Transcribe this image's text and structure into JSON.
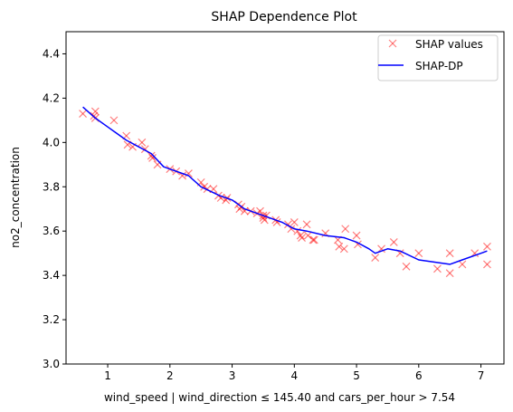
{
  "chart_data": {
    "type": "scatter",
    "title": "SHAP Dependence Plot",
    "xlabel": "wind_speed | wind_direction ≤ 145.40 and cars_per_hour > 7.54",
    "ylabel": "no2_concentration",
    "xlim": [
      0.33,
      7.37
    ],
    "ylim": [
      3.0,
      4.5
    ],
    "xticks": [
      1,
      2,
      3,
      4,
      5,
      6,
      7
    ],
    "yticks": [
      3.0,
      3.2,
      3.4,
      3.6,
      3.8,
      4.0,
      4.2,
      4.4
    ],
    "xtick_labels": [
      "1",
      "2",
      "3",
      "4",
      "5",
      "6",
      "7"
    ],
    "ytick_labels": [
      "3.0",
      "3.2",
      "3.4",
      "3.6",
      "3.8",
      "4.0",
      "4.2",
      "4.4"
    ],
    "legend_position": "top-right",
    "grid": false,
    "series": [
      {
        "name": "SHAP values",
        "kind": "scatter",
        "marker": "x",
        "color": "#ff0000",
        "alpha": 0.5,
        "points": [
          [
            0.6,
            4.13
          ],
          [
            0.78,
            4.12
          ],
          [
            0.8,
            4.14
          ],
          [
            0.8,
            4.11
          ],
          [
            1.1,
            4.1
          ],
          [
            1.3,
            4.03
          ],
          [
            1.32,
            3.99
          ],
          [
            1.4,
            3.98
          ],
          [
            1.55,
            4.0
          ],
          [
            1.6,
            3.97
          ],
          [
            1.7,
            3.94
          ],
          [
            1.72,
            3.93
          ],
          [
            1.8,
            3.9
          ],
          [
            2.0,
            3.88
          ],
          [
            2.1,
            3.87
          ],
          [
            2.2,
            3.85
          ],
          [
            2.3,
            3.86
          ],
          [
            2.5,
            3.82
          ],
          [
            2.55,
            3.8
          ],
          [
            2.6,
            3.79
          ],
          [
            2.7,
            3.79
          ],
          [
            2.78,
            3.76
          ],
          [
            2.82,
            3.75
          ],
          [
            2.9,
            3.74
          ],
          [
            2.92,
            3.75
          ],
          [
            3.1,
            3.72
          ],
          [
            3.12,
            3.7
          ],
          [
            3.15,
            3.71
          ],
          [
            3.2,
            3.69
          ],
          [
            3.3,
            3.69
          ],
          [
            3.4,
            3.68
          ],
          [
            3.45,
            3.69
          ],
          [
            3.5,
            3.67
          ],
          [
            3.5,
            3.66
          ],
          [
            3.52,
            3.65
          ],
          [
            3.55,
            3.67
          ],
          [
            3.7,
            3.65
          ],
          [
            3.72,
            3.64
          ],
          [
            3.9,
            3.63
          ],
          [
            3.95,
            3.61
          ],
          [
            4.0,
            3.64
          ],
          [
            4.05,
            3.6
          ],
          [
            4.1,
            3.58
          ],
          [
            4.12,
            3.57
          ],
          [
            4.2,
            3.63
          ],
          [
            4.22,
            3.58
          ],
          [
            4.3,
            3.56
          ],
          [
            4.32,
            3.56
          ],
          [
            4.5,
            3.59
          ],
          [
            4.7,
            3.56
          ],
          [
            4.72,
            3.53
          ],
          [
            4.8,
            3.52
          ],
          [
            4.82,
            3.61
          ],
          [
            5.0,
            3.58
          ],
          [
            5.02,
            3.54
          ],
          [
            5.3,
            3.48
          ],
          [
            5.4,
            3.52
          ],
          [
            5.6,
            3.55
          ],
          [
            5.7,
            3.5
          ],
          [
            5.8,
            3.44
          ],
          [
            6.0,
            3.5
          ],
          [
            6.3,
            3.43
          ],
          [
            6.5,
            3.5
          ],
          [
            6.5,
            3.41
          ],
          [
            6.7,
            3.45
          ],
          [
            6.9,
            3.5
          ],
          [
            7.1,
            3.53
          ],
          [
            7.1,
            3.45
          ]
        ]
      },
      {
        "name": "SHAP-DP",
        "kind": "line",
        "color": "#0000ff",
        "points": [
          [
            0.6,
            4.16
          ],
          [
            0.8,
            4.11
          ],
          [
            1.0,
            4.07
          ],
          [
            1.3,
            4.01
          ],
          [
            1.5,
            3.98
          ],
          [
            1.7,
            3.95
          ],
          [
            1.9,
            3.89
          ],
          [
            2.0,
            3.88
          ],
          [
            2.3,
            3.85
          ],
          [
            2.5,
            3.8
          ],
          [
            2.8,
            3.76
          ],
          [
            3.0,
            3.74
          ],
          [
            3.2,
            3.7
          ],
          [
            3.5,
            3.67
          ],
          [
            3.8,
            3.64
          ],
          [
            4.0,
            3.61
          ],
          [
            4.2,
            3.6
          ],
          [
            4.5,
            3.58
          ],
          [
            4.8,
            3.57
          ],
          [
            5.0,
            3.55
          ],
          [
            5.2,
            3.52
          ],
          [
            5.3,
            3.5
          ],
          [
            5.5,
            3.52
          ],
          [
            5.7,
            3.51
          ],
          [
            6.0,
            3.47
          ],
          [
            6.5,
            3.45
          ],
          [
            6.7,
            3.47
          ],
          [
            7.0,
            3.5
          ],
          [
            7.1,
            3.51
          ]
        ]
      }
    ]
  }
}
